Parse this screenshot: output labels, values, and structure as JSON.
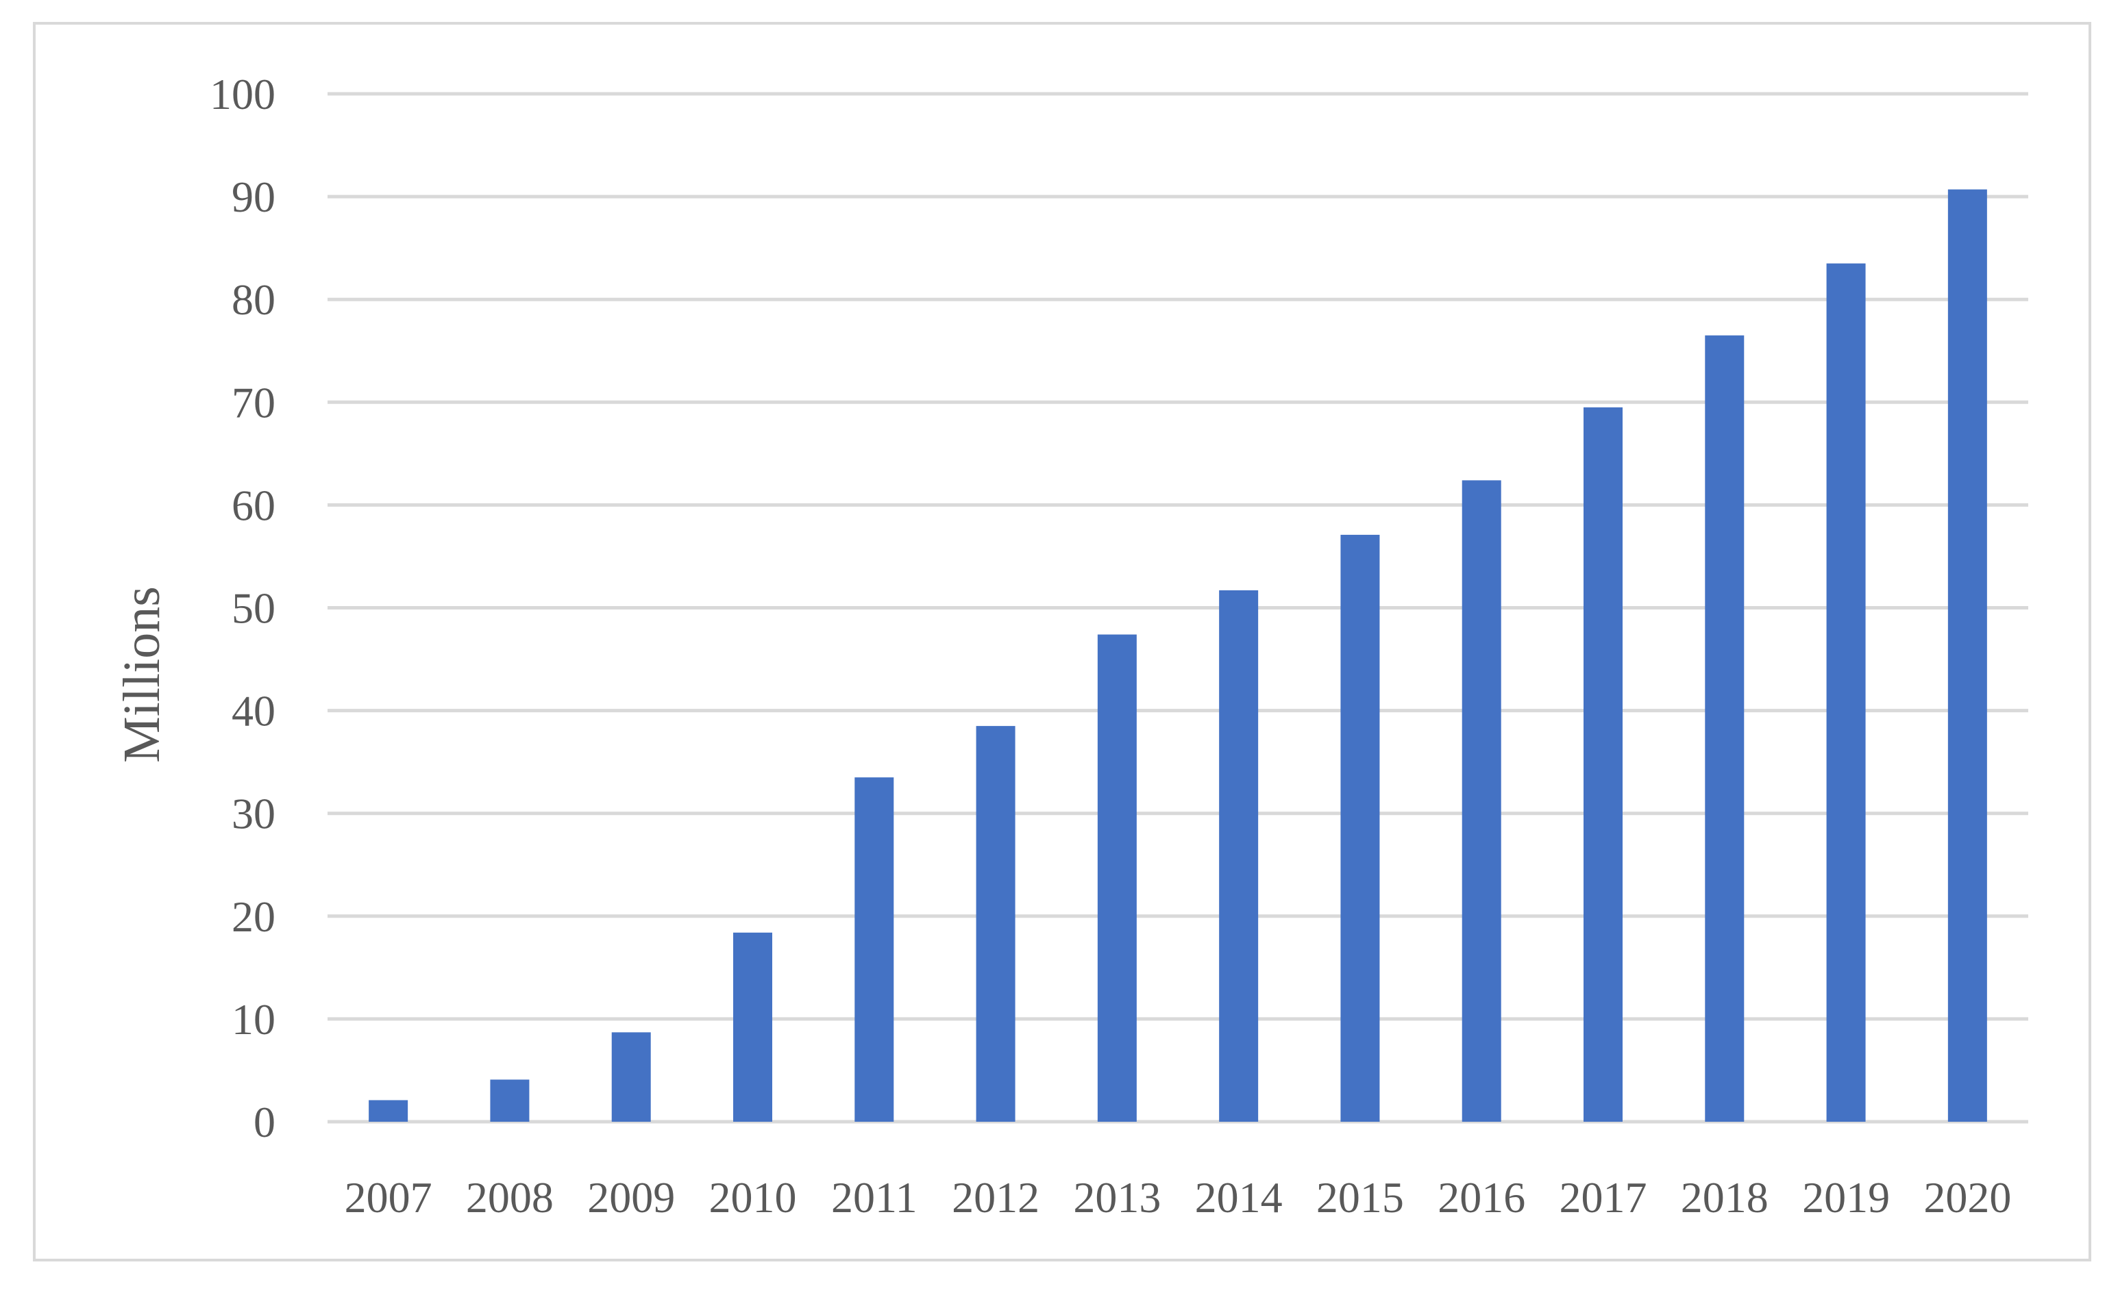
{
  "chart_data": {
    "type": "bar",
    "title": "",
    "xlabel": "",
    "ylabel": "Millions",
    "categories": [
      "2007",
      "2008",
      "2009",
      "2010",
      "2011",
      "2012",
      "2013",
      "2014",
      "2015",
      "2016",
      "2017",
      "2018",
      "2019",
      "2020"
    ],
    "values": [
      2.1,
      4.1,
      8.7,
      18.4,
      33.5,
      38.5,
      47.4,
      51.7,
      57.1,
      62.4,
      69.5,
      76.5,
      83.5,
      90.7
    ],
    "ylim": [
      0,
      100
    ],
    "yticks": [
      "0",
      "10",
      "20",
      "30",
      "40",
      "50",
      "60",
      "70",
      "80",
      "90",
      "100"
    ],
    "grid": true,
    "legend": "none",
    "colors": {
      "bar": "#4472c4",
      "grid": "#d9d9d9",
      "text": "#595959",
      "border": "#d9d9d9"
    }
  }
}
